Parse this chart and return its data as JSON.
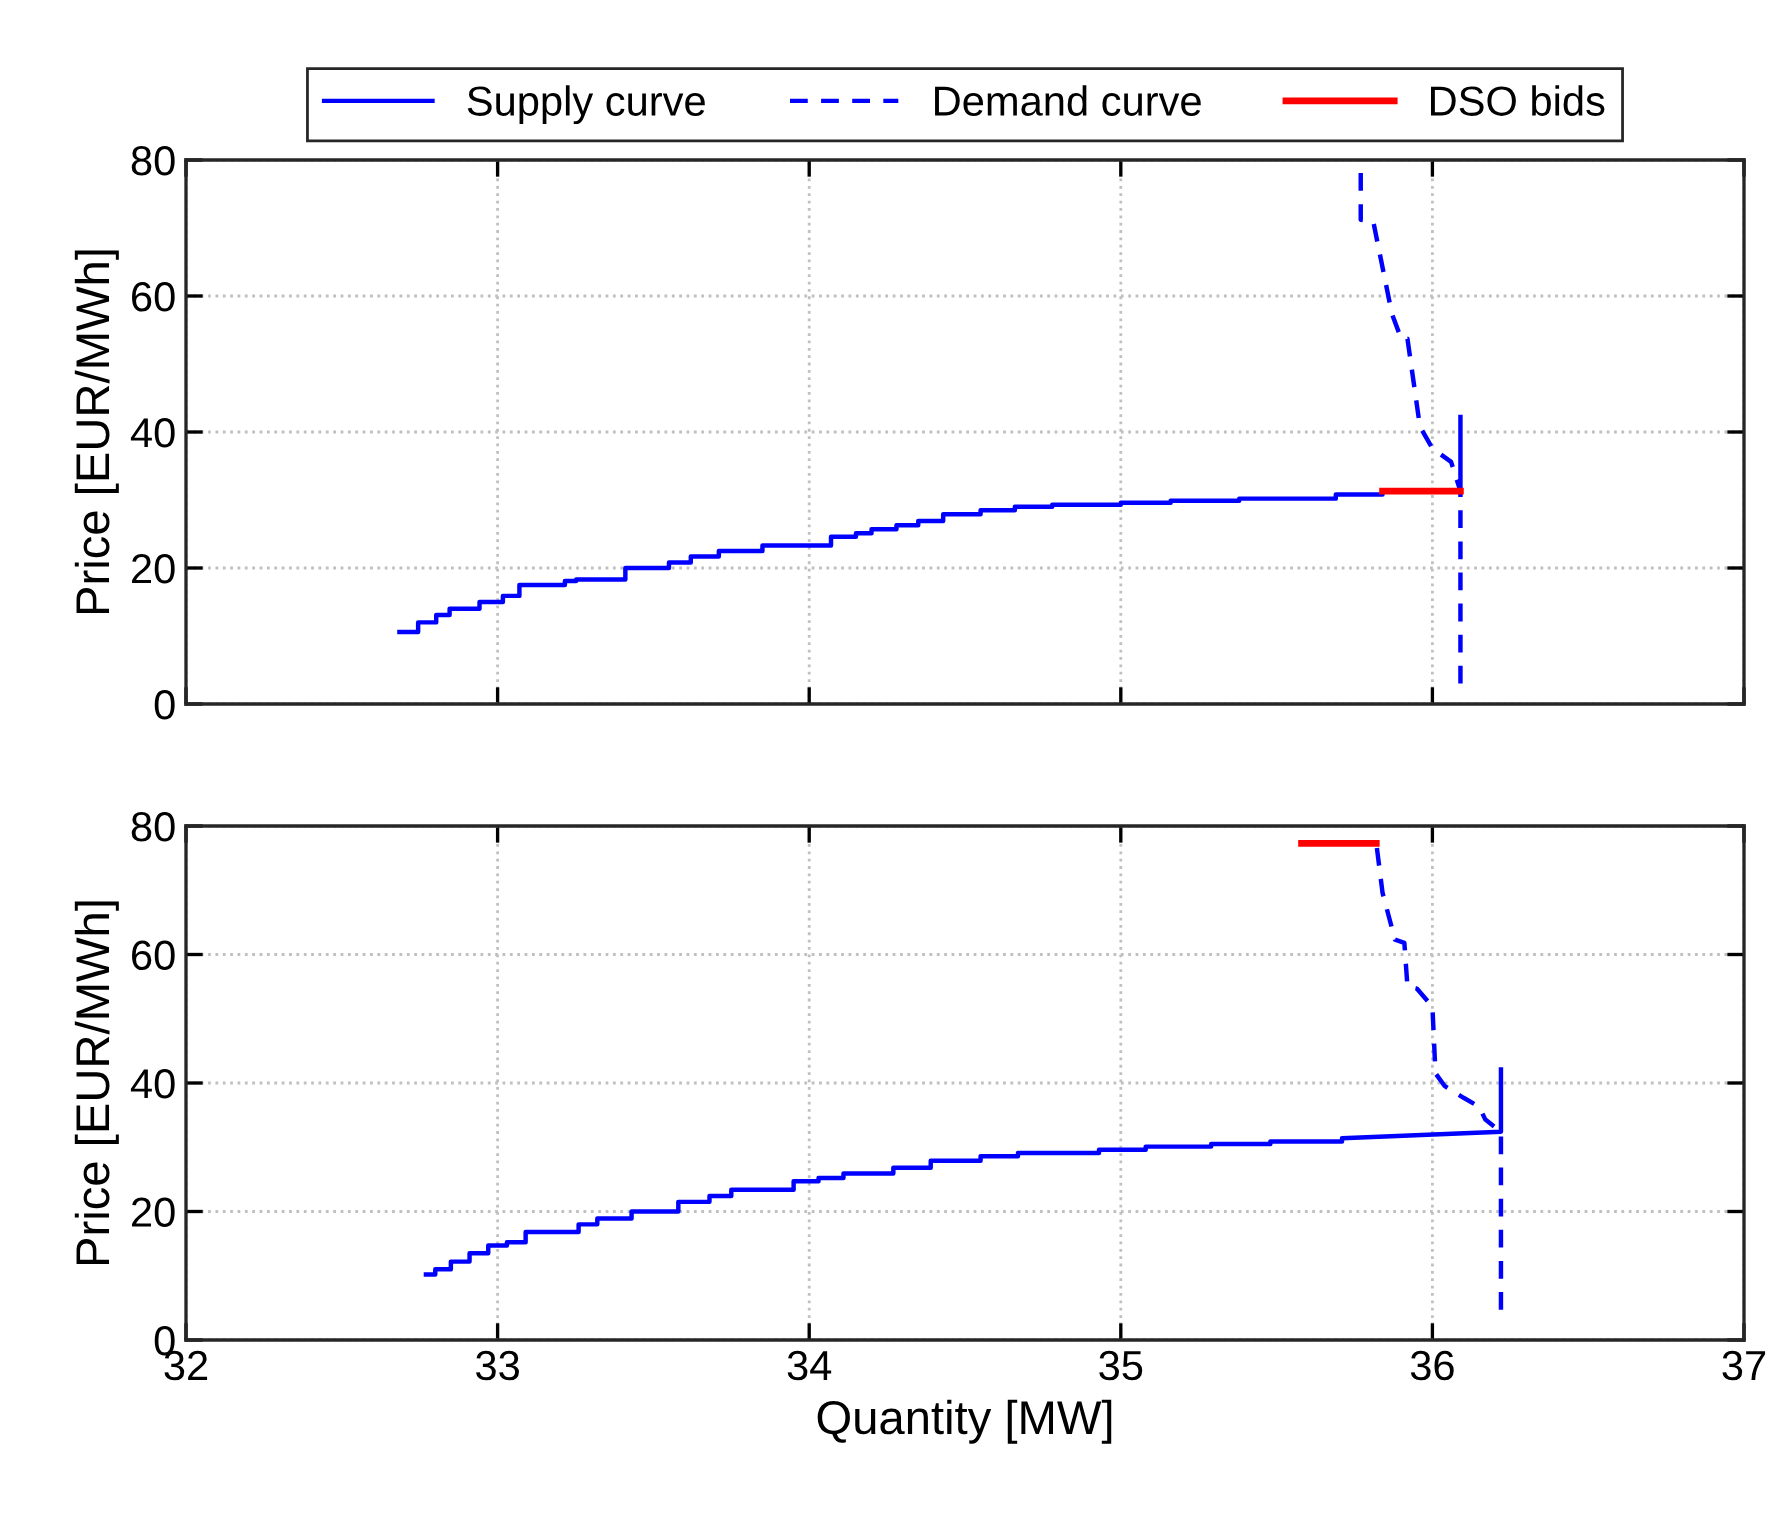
{
  "chart_data": [
    {
      "type": "line",
      "ylabel": "Price [EUR/MWh]",
      "xlim": [
        32,
        37
      ],
      "xticks": [
        32,
        33,
        34,
        35,
        36,
        37
      ],
      "ylim": [
        0,
        80
      ],
      "yticks": [
        0,
        20,
        40,
        60,
        80
      ],
      "grid": true,
      "legend": "top",
      "tick_labels": "y",
      "series": [
        {
          "name": "Supply curve",
          "color": "#0000ff",
          "line_style": "solid",
          "x": [
            32.685,
            32.745,
            32.745,
            32.803,
            32.803,
            32.846,
            32.846,
            32.942,
            32.942,
            33.017,
            33.017,
            33.07,
            33.07,
            33.216,
            33.216,
            33.252,
            33.252,
            33.41,
            33.41,
            33.55,
            33.55,
            33.62,
            33.62,
            33.71,
            33.71,
            33.85,
            33.85,
            34.07,
            34.07,
            34.15,
            34.15,
            34.2,
            34.2,
            34.28,
            34.28,
            34.35,
            34.35,
            34.43,
            34.43,
            34.55,
            34.55,
            34.66,
            34.66,
            34.78,
            34.78,
            35.0,
            35.0,
            35.16,
            35.16,
            35.38,
            35.38,
            35.69,
            35.69,
            35.84,
            35.84,
            36.09,
            36.09
          ],
          "values": [
            10.6,
            10.6,
            12.0,
            12.0,
            13.1,
            13.1,
            14.0,
            14.0,
            15.0,
            15.0,
            15.9,
            15.9,
            17.5,
            17.5,
            18.1,
            18.1,
            18.3,
            18.3,
            20.0,
            20.0,
            20.8,
            20.8,
            21.7,
            21.7,
            22.5,
            22.5,
            23.3,
            23.3,
            24.6,
            24.6,
            25.1,
            25.1,
            25.7,
            25.7,
            26.3,
            26.3,
            26.9,
            26.9,
            27.9,
            27.9,
            28.5,
            28.5,
            29.0,
            29.0,
            29.3,
            29.3,
            29.6,
            29.6,
            29.9,
            29.9,
            30.2,
            30.2,
            30.8,
            30.8,
            31.3,
            31.3,
            42.2
          ]
        },
        {
          "name": "Demand curve",
          "color": "#0000ff",
          "line_style": "dashed",
          "x": [
            35.77,
            35.77,
            35.81,
            35.87,
            35.9,
            35.92,
            35.96,
            36.0,
            36.06,
            36.09,
            36.09
          ],
          "values": [
            80,
            71.2,
            71.0,
            57.4,
            53.7,
            53.7,
            40.8,
            37.6,
            35.6,
            31.3,
            3.0
          ]
        },
        {
          "name": "DSO bids",
          "color": "#ff0000",
          "line_style": "solid",
          "x": [
            35.84,
            36.09
          ],
          "values": [
            31.3,
            31.3
          ]
        }
      ]
    },
    {
      "type": "line",
      "ylabel": "Price [EUR/MWh]",
      "xlabel": "Quantity [MW]",
      "xlim": [
        32,
        37
      ],
      "xticks": [
        32,
        33,
        34,
        35,
        36,
        37
      ],
      "ylim": [
        0,
        80
      ],
      "yticks": [
        0,
        20,
        40,
        60,
        80
      ],
      "grid": true,
      "series": [
        {
          "color": "#0000ff",
          "line_style": "solid",
          "x": [
            32.77,
            32.8,
            32.8,
            32.85,
            32.85,
            32.91,
            32.91,
            32.97,
            32.97,
            33.03,
            33.03,
            33.09,
            33.09,
            33.26,
            33.26,
            33.32,
            33.32,
            33.43,
            33.43,
            33.58,
            33.58,
            33.68,
            33.68,
            33.75,
            33.75,
            33.95,
            33.95,
            34.03,
            34.03,
            34.11,
            34.11,
            34.27,
            34.27,
            34.39,
            34.39,
            34.55,
            34.55,
            34.67,
            34.67,
            34.93,
            34.93,
            35.08,
            35.08,
            35.29,
            35.29,
            35.48,
            35.48,
            35.71,
            35.71,
            36.22,
            36.22
          ],
          "values": [
            10.2,
            10.2,
            11.0,
            11.0,
            12.2,
            12.2,
            13.5,
            13.5,
            14.7,
            14.7,
            15.2,
            15.2,
            16.8,
            16.8,
            18.0,
            18.0,
            18.9,
            18.9,
            20.0,
            20.0,
            21.5,
            21.5,
            22.4,
            22.4,
            23.4,
            23.4,
            24.7,
            24.7,
            25.2,
            25.2,
            25.9,
            25.9,
            26.8,
            26.8,
            27.9,
            27.9,
            28.6,
            28.6,
            29.1,
            29.1,
            29.6,
            29.6,
            30.1,
            30.1,
            30.5,
            30.5,
            30.9,
            30.9,
            31.4,
            32.4,
            42.1
          ]
        },
        {
          "color": "#0000ff",
          "line_style": "dashed",
          "x": [
            35.82,
            35.84,
            35.88,
            35.91,
            35.92,
            35.95,
            36.0,
            36.01,
            36.04,
            36.1,
            36.15,
            36.17,
            36.22,
            36.22
          ],
          "values": [
            77.3,
            69.6,
            62.3,
            61.8,
            55.0,
            54.7,
            51.9,
            41.5,
            39.5,
            37.7,
            36.3,
            34.3,
            32.4,
            4.7
          ]
        },
        {
          "color": "#ff0000",
          "line_style": "solid",
          "x": [
            35.58,
            35.82
          ],
          "values": [
            77.3,
            77.3
          ]
        }
      ]
    }
  ]
}
